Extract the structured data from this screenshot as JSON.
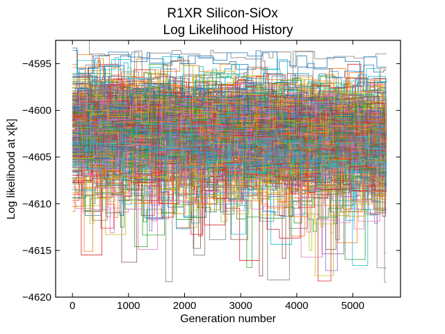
{
  "chart_data": {
    "type": "line",
    "title_line1": "R1XR Silicon-SiOx",
    "title_line2": "Log Likelihood History",
    "xlabel": "Generation number",
    "ylabel": "Log likelihood at x[k]",
    "xlim": [
      -300,
      5850
    ],
    "ylim": [
      -4620,
      -4592.5
    ],
    "xticks": [
      0,
      1000,
      2000,
      3000,
      4000,
      5000
    ],
    "yticks": [
      -4595,
      -4600,
      -4605,
      -4610,
      -4615,
      -4620
    ],
    "xtick_labels": [
      "0",
      "1000",
      "2000",
      "3000",
      "4000",
      "5000"
    ],
    "ytick_labels": [
      "−4595",
      "−4600",
      "−4605",
      "−4610",
      "−4615",
      "−4620"
    ],
    "tick_direction": "in",
    "grid": false,
    "legend": false,
    "generations": [
      0,
      5600
    ],
    "series_summary": {
      "description_free": true,
      "chains": 400,
      "dense_band": [
        -4606,
        -4597
      ],
      "mean_start": -4601.5,
      "mean_end": -4602.8,
      "outer_range": [
        -4618.5,
        -4593.5
      ]
    },
    "colors": [
      "#1f77b4",
      "#ff7f0e",
      "#2ca02c",
      "#d62728",
      "#9467bd",
      "#8c564b",
      "#e377c2",
      "#7f7f7f",
      "#bcbd22",
      "#17becf"
    ]
  }
}
